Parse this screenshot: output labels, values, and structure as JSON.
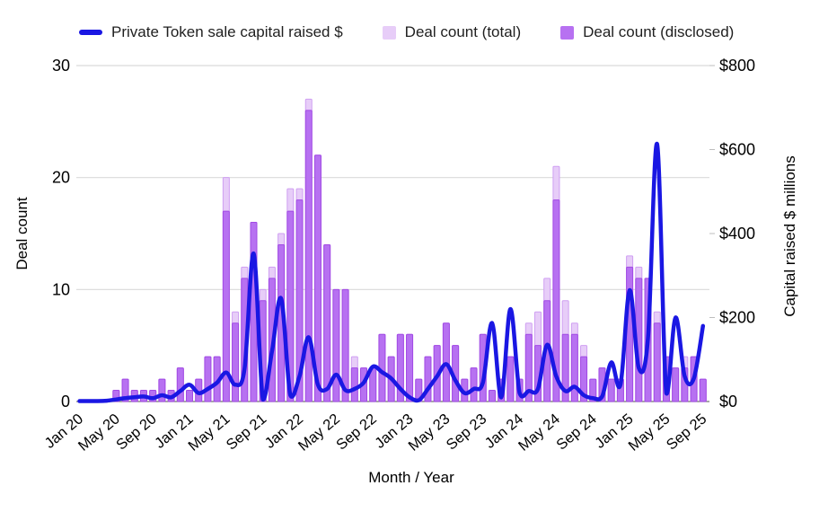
{
  "chart_data": {
    "type": "combo-bar-line",
    "title": "",
    "x_axis": {
      "label": "Month / Year",
      "tick_labels": [
        "Jan 20",
        "May 20",
        "Sep 20",
        "Jan 21",
        "May 21",
        "Sep 21",
        "Jan 22",
        "May 22",
        "Sep 22",
        "Jan 23",
        "May 23",
        "Sep 23",
        "Jan 24",
        "May 24",
        "Sep 24",
        "Jan 25",
        "May 25",
        "Sep 25"
      ]
    },
    "left_axis": {
      "label": "Deal count",
      "ticks": [
        "0",
        "10",
        "20",
        "30"
      ],
      "range": [
        0,
        30
      ]
    },
    "right_axis": {
      "label": "Capital raised $ millions",
      "ticks": [
        "$0",
        "$200",
        "$400",
        "$600",
        "$800"
      ],
      "range": [
        0,
        800
      ]
    },
    "legend_position": "top",
    "grid": "horizontal-only",
    "months": [
      "Jan 20",
      "Feb 20",
      "Mar 20",
      "Apr 20",
      "May 20",
      "Jun 20",
      "Jul 20",
      "Aug 20",
      "Sep 20",
      "Oct 20",
      "Nov 20",
      "Dec 20",
      "Jan 21",
      "Feb 21",
      "Mar 21",
      "Apr 21",
      "May 21",
      "Jun 21",
      "Jul 21",
      "Aug 21",
      "Sep 21",
      "Oct 21",
      "Nov 21",
      "Dec 21",
      "Jan 22",
      "Feb 22",
      "Mar 22",
      "Apr 22",
      "May 22",
      "Jun 22",
      "Jul 22",
      "Aug 22",
      "Sep 22",
      "Oct 22",
      "Nov 22",
      "Dec 22",
      "Jan 23",
      "Feb 23",
      "Mar 23",
      "Apr 23",
      "May 23",
      "Jun 23",
      "Jul 23",
      "Aug 23",
      "Sep 23",
      "Oct 23",
      "Nov 23",
      "Dec 23",
      "Jan 24",
      "Feb 24",
      "Mar 24",
      "Apr 24",
      "May 24",
      "Jun 24",
      "Jul 24",
      "Aug 24",
      "Sep 24",
      "Oct 24",
      "Nov 24",
      "Dec 24",
      "Jan 25",
      "Feb 25",
      "Mar 25",
      "Apr 25",
      "May 25",
      "Jun 25",
      "Jul 25",
      "Aug 25",
      "Sep 25"
    ],
    "series": [
      {
        "name": "Private Token sale capital raised $",
        "type": "line",
        "axis": "right",
        "color": "#1a17e3",
        "values": [
          1,
          1,
          1,
          2,
          5,
          8,
          10,
          12,
          8,
          15,
          10,
          25,
          40,
          20,
          30,
          45,
          69,
          40,
          78,
          352,
          5,
          120,
          245,
          15,
          60,
          153,
          40,
          30,
          64,
          27,
          30,
          45,
          83,
          70,
          55,
          30,
          10,
          3,
          30,
          60,
          89,
          50,
          20,
          30,
          45,
          187,
          10,
          220,
          20,
          25,
          30,
          135,
          60,
          25,
          35,
          15,
          8,
          12,
          93,
          40,
          265,
          80,
          150,
          613,
          20,
          200,
          60,
          55,
          180
        ]
      },
      {
        "name": "Deal count (total)",
        "type": "bar",
        "axis": "left",
        "color": "#e7cdf8",
        "border_color": "#cf9ff2",
        "values": [
          0,
          0,
          0,
          0,
          1,
          2,
          1,
          1,
          1,
          2,
          1,
          3,
          1,
          2,
          4,
          4,
          20,
          8,
          12,
          16,
          10,
          12,
          15,
          19,
          19,
          27,
          22,
          14,
          10,
          10,
          4,
          3,
          3,
          6,
          4,
          6,
          6,
          2,
          4,
          5,
          7,
          5,
          2,
          3,
          6,
          1,
          2,
          4,
          2,
          7,
          8,
          11,
          21,
          9,
          7,
          5,
          2,
          3,
          2,
          2,
          13,
          12,
          11,
          8,
          4,
          3,
          4,
          4,
          2
        ]
      },
      {
        "name": "Deal count (disclosed)",
        "type": "bar",
        "axis": "left",
        "color": "#b771f1",
        "border_color": "#a14ae4",
        "values": [
          0,
          0,
          0,
          0,
          1,
          2,
          1,
          1,
          1,
          2,
          1,
          3,
          1,
          2,
          4,
          4,
          17,
          7,
          11,
          16,
          9,
          11,
          14,
          17,
          18,
          26,
          22,
          14,
          10,
          10,
          3,
          3,
          3,
          6,
          4,
          6,
          6,
          2,
          4,
          5,
          7,
          5,
          2,
          3,
          6,
          1,
          2,
          4,
          2,
          6,
          5,
          9,
          18,
          6,
          6,
          4,
          2,
          3,
          2,
          2,
          12,
          11,
          11,
          7,
          4,
          3,
          3,
          4,
          2
        ]
      }
    ],
    "colors": {
      "line": "#1a17e3",
      "bar_total": "#e7cdf8",
      "bar_disclosed": "#b771f1",
      "gridline": "#d9d9d9",
      "baseline": "#757575",
      "text": "#000000"
    }
  }
}
